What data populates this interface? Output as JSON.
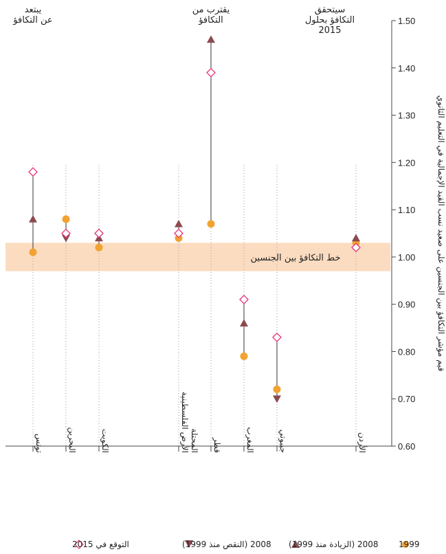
{
  "chart_data": {
    "type": "scatter",
    "ylabel": "قيم مؤشر التكافؤ بين الجنسين على صعيد نسب القيد الإجمالية في التعليم الثانوي",
    "ylim": [
      0.6,
      1.5
    ],
    "yticks": [
      "0.60",
      "0.70",
      "0.80",
      "0.90",
      "1.00",
      "1.10",
      "1.20",
      "1.30",
      "1.40",
      "1.50"
    ],
    "parity_band": {
      "from": 0.97,
      "to": 1.03,
      "label": "خط التكافؤ بين الجنسين"
    },
    "annotations": [
      {
        "text": [
          "يبتعد",
          "عن التكافؤ"
        ]
      },
      {
        "text": [
          "يقترب من",
          "التكافؤ"
        ]
      },
      {
        "text": [
          "سيتحقق",
          "التكافؤ بحلول",
          "2015"
        ]
      }
    ],
    "categories": [
      "تونس",
      "البحرين",
      "الكويت",
      "الأرض الفلسطينية المحتلة",
      "قطر",
      "المغرب",
      "جيبوتي",
      "الأردن"
    ],
    "category_lines": [
      [
        "تونس"
      ],
      [
        "البحرين"
      ],
      [
        "الكويت"
      ],
      [
        "الأرض الفلسطينية",
        "المحتلة"
      ],
      [
        "قطر"
      ],
      [
        "المغرب"
      ],
      [
        "جيبوتي"
      ],
      [
        "الأردن"
      ]
    ],
    "series": [
      {
        "name": "1999",
        "values": [
          1.01,
          1.08,
          1.02,
          1.04,
          1.07,
          0.79,
          0.72,
          1.03
        ]
      },
      {
        "name": "2008",
        "values": [
          1.08,
          1.04,
          1.04,
          1.07,
          1.46,
          0.86,
          0.7,
          1.04
        ]
      },
      {
        "name": "التوقع في 2015",
        "values": [
          1.18,
          1.05,
          1.05,
          1.05,
          1.39,
          0.91,
          0.83,
          1.02
        ]
      }
    ],
    "legend": {
      "position": "bottom",
      "items": [
        {
          "label": "1999",
          "marker": "circle"
        },
        {
          "label": "2008 (الزيادة منذ 1999)",
          "marker": "triangle-up"
        },
        {
          "label": "2008 (النقص منذ 1999)",
          "marker": "triangle-down"
        },
        {
          "label": "التوقع في 2015",
          "marker": "diamond"
        }
      ]
    },
    "colors": {
      "circle": "#f2a230",
      "triangle": "#8b4a4f",
      "diamond": "#e5317a",
      "band": "#fbdcc0",
      "line": "#333333"
    }
  }
}
